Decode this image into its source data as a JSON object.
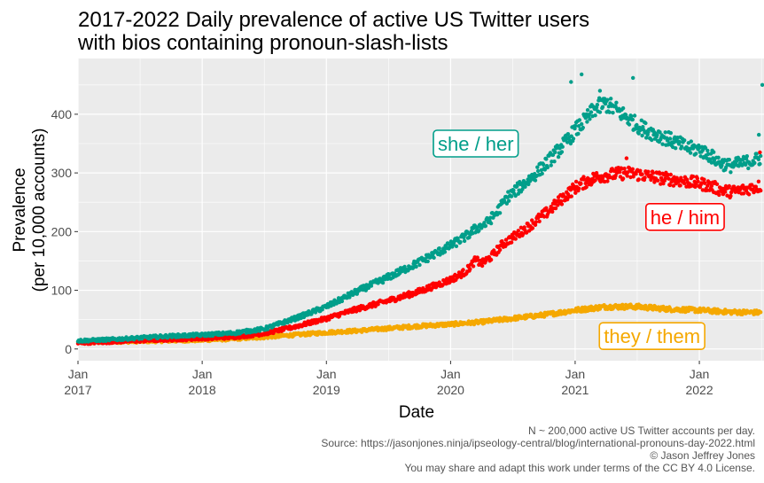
{
  "chart_data": {
    "type": "scatter",
    "title": [
      "2017-2022 Daily prevalence of active US Twitter users",
      "with bios containing pronoun-slash-lists"
    ],
    "xlabel": "Date",
    "ylabel": [
      "Prevalence",
      "(per 10,000 accounts)"
    ],
    "xlim": [
      "2017-01-01",
      "2022-07-10"
    ],
    "ylim": [
      -20,
      495
    ],
    "grid": true,
    "x_ticks": [
      {
        "date": "2017-01-01",
        "label": [
          "Jan",
          "2017"
        ]
      },
      {
        "date": "2018-01-01",
        "label": [
          "Jan",
          "2018"
        ]
      },
      {
        "date": "2019-01-01",
        "label": [
          "Jan",
          "2019"
        ]
      },
      {
        "date": "2020-01-01",
        "label": [
          "Jan",
          "2020"
        ]
      },
      {
        "date": "2021-01-01",
        "label": [
          "Jan",
          "2021"
        ]
      },
      {
        "date": "2022-01-01",
        "label": [
          "Jan",
          "2022"
        ]
      }
    ],
    "y_ticks": [
      0,
      100,
      200,
      300,
      400
    ],
    "series": [
      {
        "name": "she / her",
        "color": "#009E8A",
        "label_at": [
          "2020-03-15",
          350
        ],
        "points": [
          [
            "2017-01-01",
            14
          ],
          [
            "2017-04-01",
            16
          ],
          [
            "2017-07-01",
            19
          ],
          [
            "2017-10-01",
            22
          ],
          [
            "2018-01-01",
            24
          ],
          [
            "2018-04-01",
            27
          ],
          [
            "2018-07-01",
            34
          ],
          [
            "2018-10-01",
            52
          ],
          [
            "2019-01-01",
            72
          ],
          [
            "2019-04-01",
            98
          ],
          [
            "2019-07-01",
            122
          ],
          [
            "2019-10-01",
            148
          ],
          [
            "2020-01-01",
            176
          ],
          [
            "2020-02-15",
            192
          ],
          [
            "2020-03-15",
            205
          ],
          [
            "2020-04-15",
            214
          ],
          [
            "2020-05-15",
            232
          ],
          [
            "2020-06-15",
            258
          ],
          [
            "2020-07-15",
            272
          ],
          [
            "2020-09-01",
            295
          ],
          [
            "2020-10-15",
            320
          ],
          [
            "2020-12-01",
            350
          ],
          [
            "2021-01-01",
            372
          ],
          [
            "2021-02-01",
            390
          ],
          [
            "2021-03-01",
            410
          ],
          [
            "2021-04-01",
            418
          ],
          [
            "2021-05-01",
            408
          ],
          [
            "2021-06-01",
            395
          ],
          [
            "2021-07-01",
            382
          ],
          [
            "2021-08-01",
            372
          ],
          [
            "2021-09-01",
            365
          ],
          [
            "2021-10-01",
            358
          ],
          [
            "2021-11-01",
            350
          ],
          [
            "2021-12-01",
            342
          ],
          [
            "2022-01-01",
            340
          ],
          [
            "2022-02-01",
            330
          ],
          [
            "2022-03-01",
            318
          ],
          [
            "2022-04-01",
            312
          ],
          [
            "2022-05-01",
            316
          ],
          [
            "2022-06-01",
            320
          ],
          [
            "2022-07-01",
            325
          ]
        ]
      },
      {
        "name": "he / him",
        "color": "#FF0000",
        "label_at": [
          "2021-11-20",
          225
        ],
        "points": [
          [
            "2017-01-01",
            10
          ],
          [
            "2017-04-01",
            12
          ],
          [
            "2017-07-01",
            14
          ],
          [
            "2017-10-01",
            16
          ],
          [
            "2018-01-01",
            18
          ],
          [
            "2018-04-01",
            20
          ],
          [
            "2018-07-01",
            26
          ],
          [
            "2018-10-01",
            38
          ],
          [
            "2019-01-01",
            52
          ],
          [
            "2019-04-01",
            68
          ],
          [
            "2019-07-01",
            82
          ],
          [
            "2019-10-01",
            98
          ],
          [
            "2020-01-01",
            118
          ],
          [
            "2020-02-15",
            132
          ],
          [
            "2020-03-15",
            152
          ],
          [
            "2020-04-01",
            145
          ],
          [
            "2020-05-01",
            158
          ],
          [
            "2020-06-01",
            178
          ],
          [
            "2020-07-15",
            195
          ],
          [
            "2020-09-01",
            215
          ],
          [
            "2020-10-15",
            235
          ],
          [
            "2020-12-01",
            260
          ],
          [
            "2021-01-01",
            275
          ],
          [
            "2021-02-01",
            285
          ],
          [
            "2021-03-01",
            292
          ],
          [
            "2021-04-01",
            296
          ],
          [
            "2021-05-01",
            298
          ],
          [
            "2021-06-01",
            300
          ],
          [
            "2021-07-01",
            298
          ],
          [
            "2021-08-01",
            295
          ],
          [
            "2021-09-01",
            292
          ],
          [
            "2021-10-01",
            290
          ],
          [
            "2021-11-01",
            287
          ],
          [
            "2021-12-01",
            285
          ],
          [
            "2022-01-01",
            282
          ],
          [
            "2022-02-01",
            278
          ],
          [
            "2022-03-01",
            272
          ],
          [
            "2022-04-01",
            268
          ],
          [
            "2022-05-01",
            270
          ],
          [
            "2022-06-01",
            274
          ],
          [
            "2022-07-01",
            278
          ]
        ]
      },
      {
        "name": "they / them",
        "color": "#F5A800",
        "label_at": [
          "2021-08-15",
          22
        ],
        "points": [
          [
            "2017-01-01",
            11
          ],
          [
            "2017-04-01",
            12
          ],
          [
            "2017-07-01",
            13
          ],
          [
            "2017-10-01",
            14
          ],
          [
            "2018-01-01",
            15
          ],
          [
            "2018-04-01",
            17
          ],
          [
            "2018-07-01",
            20
          ],
          [
            "2018-10-01",
            24
          ],
          [
            "2019-01-01",
            28
          ],
          [
            "2019-04-01",
            31
          ],
          [
            "2019-07-01",
            35
          ],
          [
            "2019-10-01",
            39
          ],
          [
            "2020-01-01",
            42
          ],
          [
            "2020-04-01",
            46
          ],
          [
            "2020-07-01",
            52
          ],
          [
            "2020-10-01",
            58
          ],
          [
            "2021-01-01",
            66
          ],
          [
            "2021-04-01",
            72
          ],
          [
            "2021-07-01",
            72
          ],
          [
            "2021-10-01",
            68
          ],
          [
            "2022-01-01",
            66
          ],
          [
            "2022-04-01",
            63
          ],
          [
            "2022-07-01",
            62
          ]
        ]
      }
    ],
    "outliers": [
      {
        "series": "she / her",
        "date": "2020-12-20",
        "value": 455
      },
      {
        "series": "she / her",
        "date": "2021-01-20",
        "value": 468
      },
      {
        "series": "she / her",
        "date": "2021-03-15",
        "value": 440
      },
      {
        "series": "she / her",
        "date": "2021-06-20",
        "value": 462
      },
      {
        "series": "she / her",
        "date": "2022-07-05",
        "value": 450
      },
      {
        "series": "she / her",
        "date": "2022-06-25",
        "value": 365
      },
      {
        "series": "he / him",
        "date": "2021-06-01",
        "value": 325
      },
      {
        "series": "he / him",
        "date": "2022-06-28",
        "value": 335
      }
    ],
    "caption": [
      "N ~ 200,000 active US Twitter accounts per day.",
      "Source: https://jasonjones.ninja/ipseology-central/blog/international-pronouns-day-2022.html",
      "© Jason Jeffrey Jones",
      "You may share and adapt this work under terms of the CC BY 4.0 License."
    ]
  }
}
